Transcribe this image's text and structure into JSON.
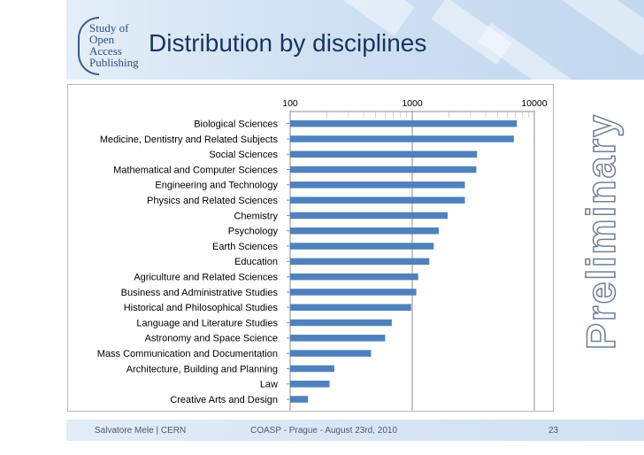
{
  "header": {
    "title": "Distribution by disciplines",
    "logo_lines": [
      "Study of",
      "Open",
      "Access",
      "Publishing"
    ]
  },
  "side_label": "Preliminary",
  "footer": {
    "author": "Salvatore Mele | CERN",
    "event": "COASP - Prague - August 23rd, 2010",
    "page": "23"
  },
  "colors": {
    "bar": "#4f81bd",
    "title": "#17365d",
    "band": "#cfe0f2"
  },
  "chart_data": {
    "type": "bar",
    "orientation": "horizontal",
    "x_scale": "log",
    "xlim": [
      100,
      10000
    ],
    "x_ticks": [
      100,
      1000,
      10000
    ],
    "x_tick_labels": [
      "100",
      "1000",
      "10000"
    ],
    "x_axis_position": "top",
    "grid": "vertical major and minor",
    "legend": "none",
    "categories": [
      "Biological Sciences",
      "Medicine, Dentistry and Related Subjects",
      "Social Sciences",
      "Mathematical and Computer Sciences",
      "Engineering and Technology",
      "Physics and Related Sciences",
      "Chemistry",
      "Psychology",
      "Earth Sciences",
      "Education",
      "Agriculture and Related Sciences",
      "Business and Administrative Studies",
      "Historical and Philosophical Studies",
      "Language and Literature Studies",
      "Astronomy and Space Science",
      "Mass Communication and Documentation",
      "Architecture, Building and Planning",
      "Law",
      "Creative Arts and Design"
    ],
    "values": [
      7200,
      6800,
      3400,
      3350,
      2700,
      2700,
      1950,
      1650,
      1500,
      1380,
      1120,
      1080,
      980,
      680,
      600,
      460,
      230,
      210,
      140
    ]
  }
}
